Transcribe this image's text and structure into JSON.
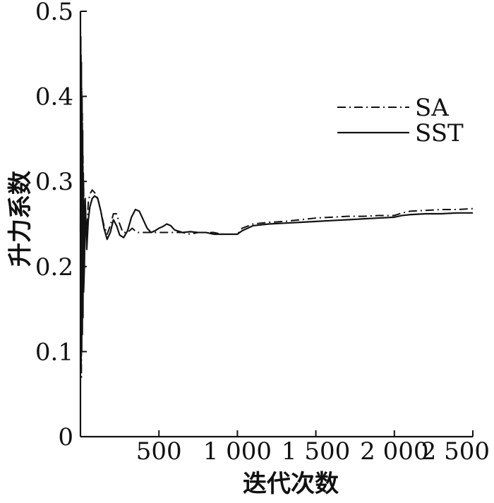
{
  "chart_data": {
    "type": "line",
    "title": "",
    "xlabel": "迭代次数",
    "ylabel": "升力系数",
    "xlim": [
      0,
      2500
    ],
    "ylim": [
      0,
      0.5
    ],
    "x_ticks": [
      {
        "value": 500,
        "label": "500"
      },
      {
        "value": 1000,
        "label": "1 000"
      },
      {
        "value": 1500,
        "label": "1 500"
      },
      {
        "value": 2000,
        "label": "2 000"
      },
      {
        "value": 2500,
        "label": "2 500"
      }
    ],
    "y_ticks": [
      {
        "value": 0,
        "label": "0"
      },
      {
        "value": 0.1,
        "label": "0.1"
      },
      {
        "value": 0.2,
        "label": "0.2"
      },
      {
        "value": 0.3,
        "label": "0.3"
      },
      {
        "value": 0.4,
        "label": "0.4"
      },
      {
        "value": 0.5,
        "label": "0.5"
      }
    ],
    "grid": false,
    "legend_position": "top-right",
    "series": [
      {
        "name": "SA",
        "line_style": "dash-dot",
        "color": "#111111",
        "x": [
          0,
          2,
          4,
          6,
          8,
          10,
          12,
          14,
          16,
          18,
          20,
          25,
          30,
          40,
          50,
          60,
          75,
          90,
          110,
          130,
          150,
          170,
          190,
          210,
          230,
          250,
          270,
          300,
          330,
          360,
          400,
          450,
          500,
          550,
          600,
          650,
          700,
          750,
          800,
          850,
          900,
          950,
          1000,
          1030,
          1100,
          1200,
          1300,
          1400,
          1500,
          1600,
          1700,
          1800,
          1900,
          2000,
          2050,
          2100,
          2200,
          2300,
          2400,
          2500
        ],
        "y": [
          0.26,
          0.09,
          0.45,
          0.07,
          0.41,
          0.12,
          0.38,
          0.15,
          0.33,
          0.18,
          0.3,
          0.21,
          0.27,
          0.24,
          0.275,
          0.285,
          0.29,
          0.287,
          0.28,
          0.265,
          0.248,
          0.238,
          0.248,
          0.262,
          0.262,
          0.25,
          0.24,
          0.24,
          0.245,
          0.24,
          0.24,
          0.24,
          0.24,
          0.24,
          0.24,
          0.24,
          0.238,
          0.24,
          0.24,
          0.24,
          0.238,
          0.238,
          0.238,
          0.245,
          0.25,
          0.252,
          0.253,
          0.255,
          0.257,
          0.258,
          0.259,
          0.259,
          0.26,
          0.26,
          0.263,
          0.265,
          0.266,
          0.267,
          0.267,
          0.268
        ]
      },
      {
        "name": "SST",
        "line_style": "solid",
        "color": "#111111",
        "x": [
          0,
          2,
          4,
          6,
          8,
          10,
          12,
          14,
          16,
          18,
          20,
          25,
          30,
          40,
          50,
          60,
          75,
          90,
          110,
          130,
          150,
          170,
          190,
          210,
          230,
          250,
          275,
          300,
          325,
          350,
          375,
          400,
          425,
          450,
          475,
          500,
          525,
          550,
          575,
          600,
          650,
          700,
          750,
          800,
          850,
          900,
          950,
          1000,
          1030,
          1100,
          1200,
          1300,
          1400,
          1500,
          1600,
          1700,
          1800,
          1900,
          2000,
          2050,
          2100,
          2200,
          2300,
          2400,
          2500
        ],
        "y": [
          0.24,
          0.47,
          0.08,
          0.44,
          0.1,
          0.4,
          0.12,
          0.36,
          0.14,
          0.31,
          0.17,
          0.2,
          0.28,
          0.22,
          0.255,
          0.27,
          0.28,
          0.283,
          0.28,
          0.265,
          0.245,
          0.232,
          0.24,
          0.255,
          0.248,
          0.237,
          0.234,
          0.242,
          0.258,
          0.267,
          0.265,
          0.255,
          0.245,
          0.24,
          0.242,
          0.245,
          0.247,
          0.25,
          0.248,
          0.243,
          0.24,
          0.241,
          0.24,
          0.24,
          0.238,
          0.238,
          0.238,
          0.238,
          0.242,
          0.248,
          0.25,
          0.251,
          0.252,
          0.253,
          0.254,
          0.255,
          0.256,
          0.257,
          0.258,
          0.26,
          0.261,
          0.262,
          0.262,
          0.263,
          0.263
        ]
      }
    ]
  }
}
